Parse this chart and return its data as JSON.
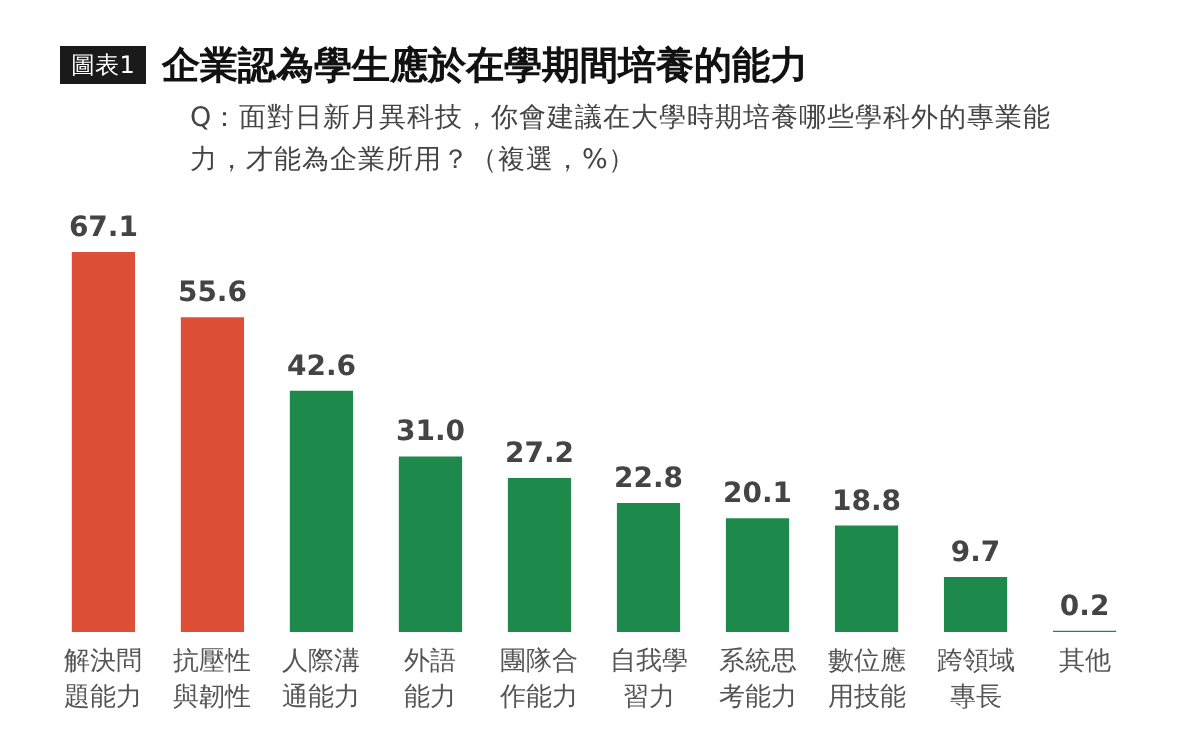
{
  "chart_data": {
    "type": "bar",
    "title": "企業認為學生應於在學期間培養的能力",
    "subtitle": "Q：面對日新月異科技，你會建議在大學時期培養哪些學科外的專業能力，才能為企業所用？（複選，%）",
    "annotations": [
      "圖表1"
    ],
    "categories": [
      "解決問題能力",
      "抗壓性與韌性",
      "人際溝通能力",
      "外語能力",
      "團隊合作能力",
      "自我學習力",
      "系統思考能力",
      "數位應用技能",
      "跨領域專長",
      "其他"
    ],
    "values": [
      67.1,
      55.6,
      42.6,
      31.0,
      27.2,
      22.8,
      20.1,
      18.8,
      9.7,
      0.2
    ],
    "value_labels": [
      "67.1",
      "55.6",
      "42.6",
      "31.0",
      "27.2",
      "22.8",
      "20.1",
      "18.8",
      "9.7",
      "0.2"
    ],
    "colors": [
      "#dd4f36",
      "#dd4f36",
      "#1d8a4b",
      "#1d8a4b",
      "#1d8a4b",
      "#1d8a4b",
      "#1d8a4b",
      "#1d8a4b",
      "#1d8a4b",
      "#1d8a4b"
    ],
    "grid": false
  }
}
